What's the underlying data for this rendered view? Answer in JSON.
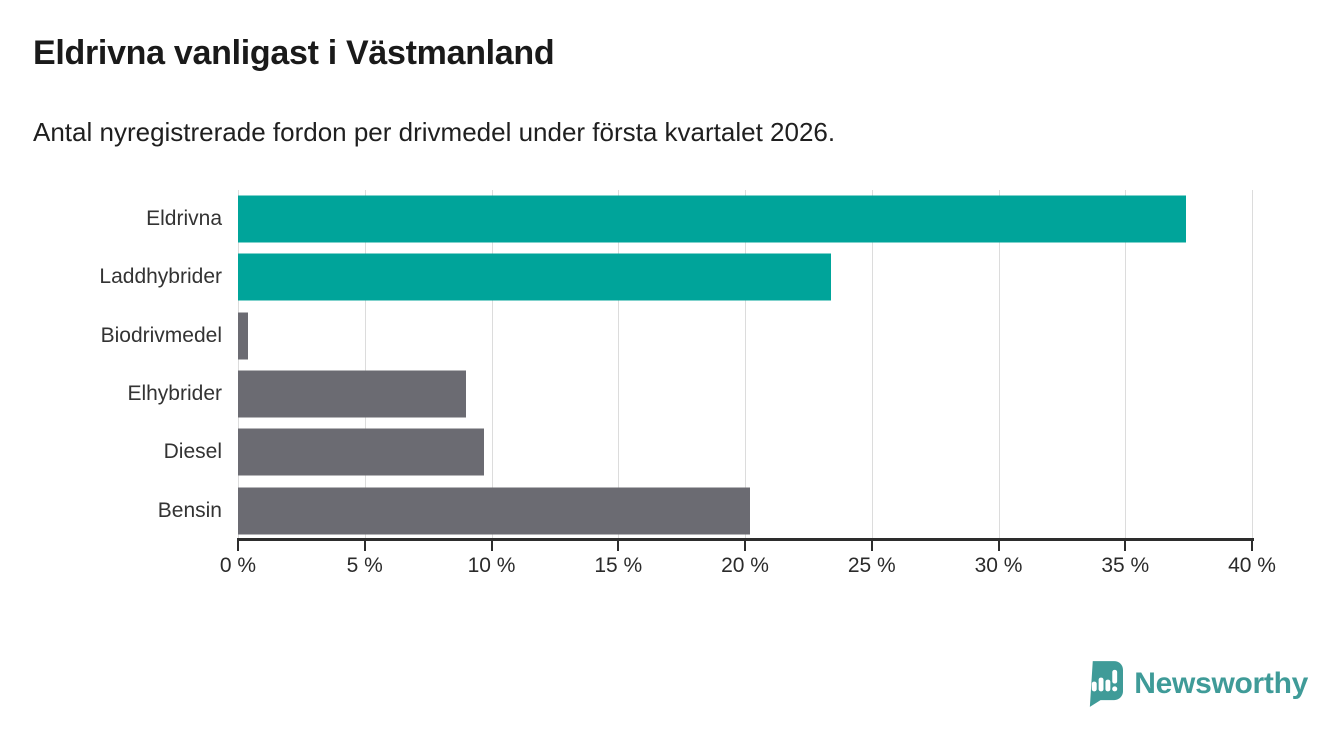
{
  "header": {
    "title": "Eldrivna vanligast i Västmanland",
    "subtitle": "Antal nyregistrerade fordon per drivmedel under första kvartalet 2026."
  },
  "chart_data": {
    "type": "bar",
    "orientation": "horizontal",
    "title": "Eldrivna vanligast i Västmanland",
    "subtitle": "Antal nyregistrerade fordon per drivmedel under första kvartalet 2026.",
    "categories": [
      "Eldrivna",
      "Laddhybrider",
      "Biodrivmedel",
      "Elhybrider",
      "Diesel",
      "Bensin"
    ],
    "values": [
      37.4,
      23.4,
      0.4,
      9.0,
      9.7,
      20.2
    ],
    "value_unit": "%",
    "bar_colors": [
      "#00a49a",
      "#00a49a",
      "#6b6b72",
      "#6b6b72",
      "#6b6b72",
      "#6b6b72"
    ],
    "colors": {
      "highlight": "#00a49a",
      "default": "#6b6b72",
      "gridline": "#dcdcdc",
      "axis": "#2d2d2d"
    },
    "xlim": [
      0,
      40
    ],
    "x_tick_step": 5,
    "x_tick_labels": [
      "0 %",
      "5 %",
      "10 %",
      "15 %",
      "20 %",
      "25 %",
      "30 %",
      "35 %",
      "40 %"
    ],
    "grid": true,
    "legend": "none",
    "ylabel": "",
    "xlabel": ""
  },
  "footer": {
    "logo_text": "Newsworthy",
    "logo_color": "#3f9b98",
    "logo_icon": "newsworthy-speech-bubble-bar-chart-icon"
  }
}
